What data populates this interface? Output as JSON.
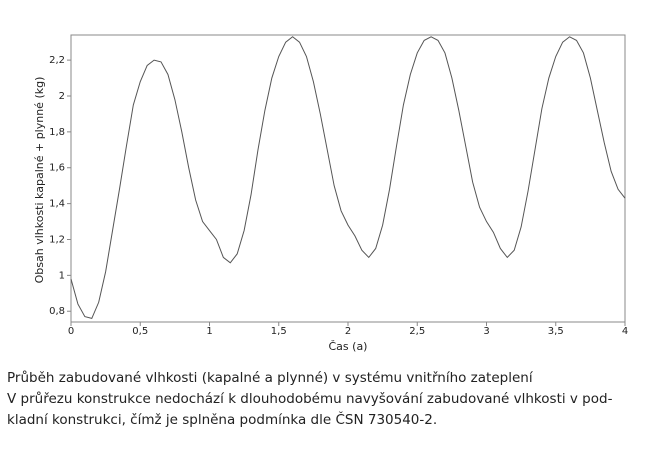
{
  "chart_data": {
    "type": "line",
    "xlabel": "Čas (a)",
    "ylabel": "Obsah vlhkosti kapalné + plynné (kg)",
    "caption": [
      "Průběh zabudované vlhkosti (kapalné a plynné) v systému vnitřního zateplení",
      "V průřezu konstrukce nedochází k dlouhodobému navyšování zabudované vlhkosti v pod-",
      "kladní konstrukci, čímž je splněna podmínka dle ČSN 730540-2."
    ],
    "x": [
      0,
      0.05,
      0.1,
      0.15,
      0.2,
      0.25,
      0.3,
      0.35,
      0.4,
      0.45,
      0.5,
      0.55,
      0.6,
      0.65,
      0.7,
      0.75,
      0.8,
      0.85,
      0.9,
      0.95,
      1,
      1.05,
      1.1,
      1.15,
      1.2,
      1.25,
      1.3,
      1.35,
      1.4,
      1.45,
      1.5,
      1.55,
      1.6,
      1.65,
      1.7,
      1.75,
      1.8,
      1.85,
      1.9,
      1.95,
      2,
      2.05,
      2.1,
      2.15,
      2.2,
      2.25,
      2.3,
      2.35,
      2.4,
      2.45,
      2.5,
      2.55,
      2.6,
      2.65,
      2.7,
      2.75,
      2.8,
      2.85,
      2.9,
      2.95,
      3,
      3.05,
      3.1,
      3.15,
      3.2,
      3.25,
      3.3,
      3.35,
      3.4,
      3.45,
      3.5,
      3.55,
      3.6,
      3.65,
      3.7,
      3.75,
      3.8,
      3.85,
      3.9,
      3.95,
      4
    ],
    "series": [
      {
        "color": "#555555",
        "values": [
          0.98,
          0.84,
          0.77,
          0.76,
          0.85,
          1.02,
          1.25,
          1.48,
          1.72,
          1.95,
          2.08,
          2.17,
          2.2,
          2.19,
          2.12,
          1.98,
          1.8,
          1.6,
          1.42,
          1.3,
          1.25,
          1.2,
          1.1,
          1.07,
          1.12,
          1.25,
          1.45,
          1.7,
          1.92,
          2.1,
          2.22,
          2.3,
          2.33,
          2.3,
          2.22,
          2.08,
          1.9,
          1.7,
          1.5,
          1.36,
          1.28,
          1.22,
          1.14,
          1.1,
          1.15,
          1.28,
          1.48,
          1.72,
          1.95,
          2.12,
          2.24,
          2.31,
          2.33,
          2.31,
          2.24,
          2.1,
          1.92,
          1.72,
          1.52,
          1.38,
          1.3,
          1.24,
          1.15,
          1.1,
          1.14,
          1.27,
          1.47,
          1.7,
          1.93,
          2.1,
          2.22,
          2.3,
          2.33,
          2.31,
          2.24,
          2.1,
          1.92,
          1.74,
          1.58,
          1.48,
          1.43
        ]
      }
    ],
    "xlim": [
      0,
      4
    ],
    "ylim": [
      0.74,
      2.34
    ],
    "xticks": [
      0,
      {
        "value": 0.5,
        "label": "0,5"
      },
      1,
      {
        "value": 1.5,
        "label": "1,5"
      },
      2,
      {
        "value": 2.5,
        "label": "2,5"
      },
      3,
      {
        "value": 3.5,
        "label": "3,5"
      },
      4
    ],
    "yticks": [
      {
        "value": 0.8,
        "label": "0,8"
      },
      1,
      {
        "value": 1.2,
        "label": "1,2"
      },
      {
        "value": 1.4,
        "label": "1,4"
      },
      {
        "value": 1.6,
        "label": "1,6"
      },
      {
        "value": 1.8,
        "label": "1,8"
      },
      2,
      {
        "value": 2.2,
        "label": "2,2"
      }
    ],
    "grid": false
  }
}
